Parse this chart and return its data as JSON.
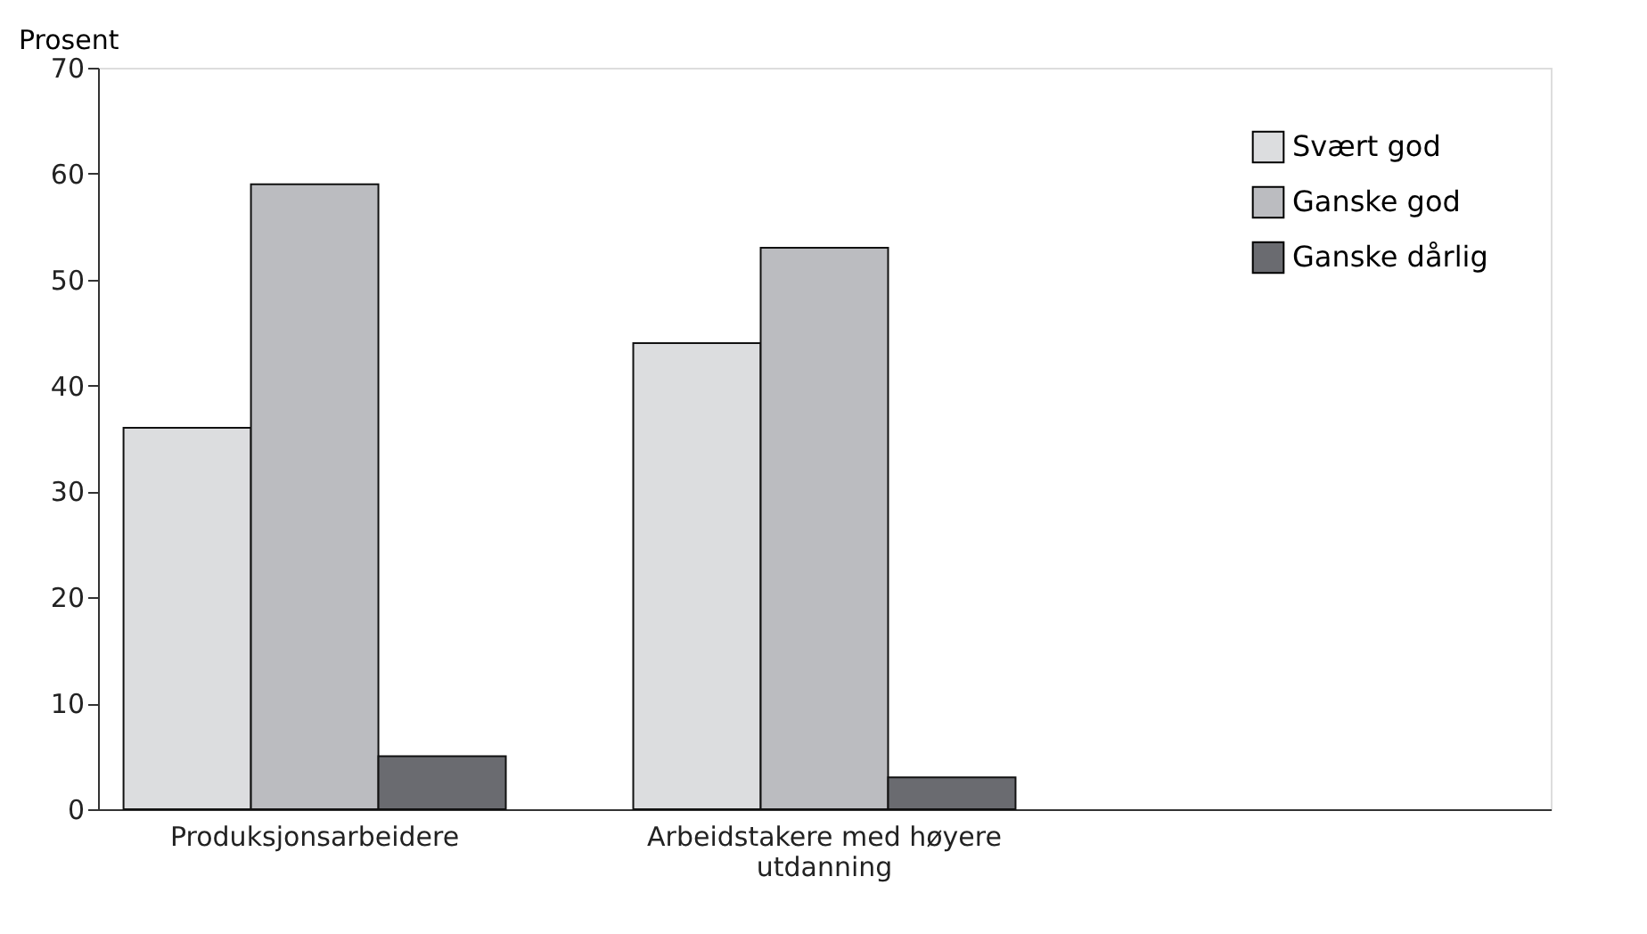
{
  "chart_data": {
    "type": "bar",
    "ylabel": "Prosent",
    "categories": [
      "Produksjonsarbeidere",
      "Arbeidstakere med høyere utdanning",
      null
    ],
    "series": [
      {
        "name": "Svært god",
        "color": "#dcdddf",
        "values": [
          36,
          44,
          null
        ]
      },
      {
        "name": "Ganske god",
        "color": "#bbbcc0",
        "values": [
          59,
          53,
          null
        ]
      },
      {
        "name": "Ganske dårlig",
        "color": "#6a6b70",
        "values": [
          5,
          3,
          null
        ]
      }
    ],
    "ylim": [
      0,
      70
    ],
    "yticks": [
      0,
      10,
      20,
      30,
      40,
      50,
      60,
      70
    ],
    "grid": false,
    "legend": "top right"
  }
}
